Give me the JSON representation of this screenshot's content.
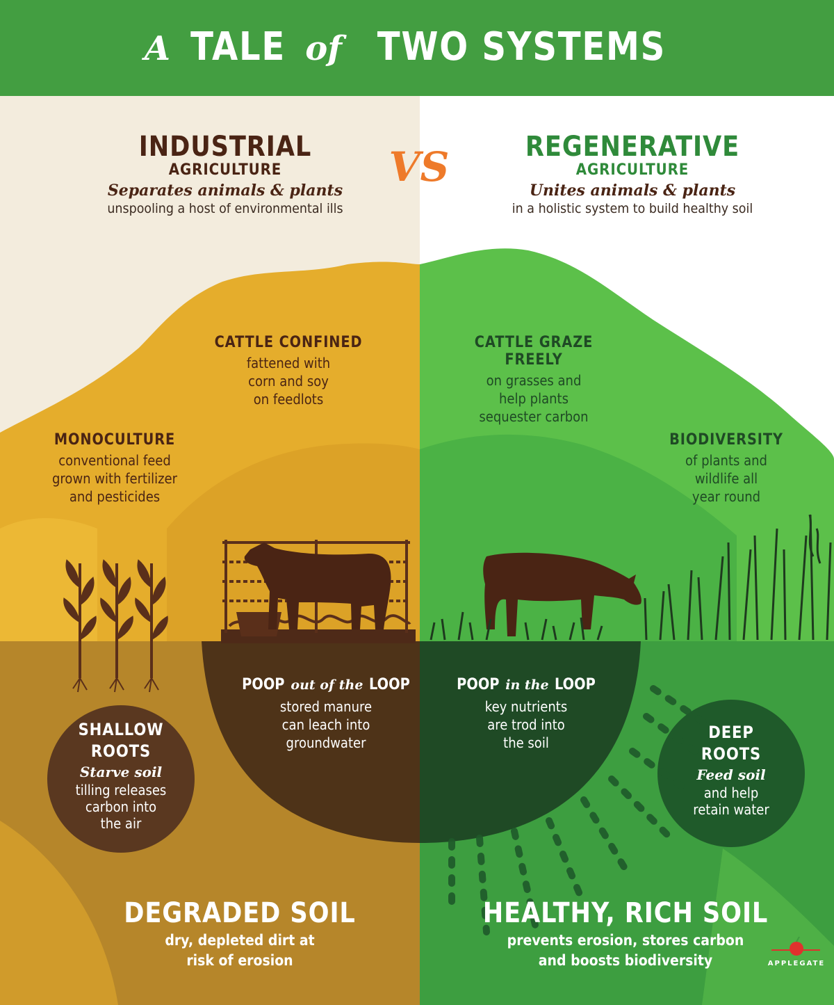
{
  "header": {
    "title_part1": "A",
    "title_part2": "TALE",
    "title_part3": "of",
    "title_part4": "TWO SYSTEMS"
  },
  "vs_label": "VS",
  "industrial": {
    "title": "INDUSTRIAL",
    "subtitle": "AGRICULTURE",
    "tagline": "Separates animals & plants",
    "description": "unspooling a host of environmental ills"
  },
  "regenerative": {
    "title": "REGENERATIVE",
    "subtitle": "AGRICULTURE",
    "tagline": "Unites animals & plants",
    "description": "in a holistic system to build healthy soil"
  },
  "labels": {
    "cattle_confined": {
      "heading": "CATTLE CONFINED",
      "lines": [
        "fattened with",
        "corn and soy",
        "on feedlots"
      ]
    },
    "cattle_graze": {
      "heading": "CATTLE GRAZE FREELY",
      "lines": [
        "on grasses and",
        "help plants",
        "sequester carbon"
      ]
    },
    "monoculture": {
      "heading": "MONOCULTURE",
      "lines": [
        "conventional feed",
        "grown with fertilizer",
        "and pesticides"
      ]
    },
    "biodiversity": {
      "heading": "BIODIVERSITY",
      "lines": [
        "of plants and",
        "wildlife all",
        "year round"
      ]
    },
    "poop_out": {
      "heading_a": "POOP",
      "heading_b": "out of the",
      "heading_c": "LOOP",
      "lines": [
        "stored manure",
        "can leach into",
        "groundwater"
      ]
    },
    "poop_in": {
      "heading_a": "POOP",
      "heading_b": "in the",
      "heading_c": "LOOP",
      "lines": [
        "key nutrients",
        "are trod into",
        "the soil"
      ]
    },
    "shallow_roots": {
      "heading": [
        "SHALLOW",
        "ROOTS"
      ],
      "tagline": "Starve soil",
      "lines": [
        "tilling releases",
        "carbon into",
        "the air"
      ]
    },
    "deep_roots": {
      "heading": [
        "DEEP",
        "ROOTS"
      ],
      "tagline": "Feed soil",
      "lines": [
        "and help",
        "retain water"
      ]
    },
    "degraded_soil": {
      "heading": "DEGRADED SOIL",
      "lines": [
        "dry, depleted dirt at",
        "risk of erosion"
      ]
    },
    "healthy_soil": {
      "heading": "HEALTHY, RICH SOIL",
      "lines": [
        "prevents erosion, stores carbon",
        "and boosts biodiversity"
      ]
    }
  },
  "logo": {
    "name": "APPLEGATE"
  },
  "colors": {
    "header_green": "#3f9a3e",
    "industrial_bg": "#f3ecdd",
    "regenerative_bg": "#ffffff",
    "ochre": "#e5ad2c",
    "ochre_dark": "#c48f22",
    "green_light": "#5cc04a",
    "green_mid": "#3aa040",
    "soil_brown": "#7a5420",
    "soil_green": "#2f6a32",
    "dark_brown": "#4a2c1a",
    "vs_orange": "#ee7a2a",
    "heading_brown": "#4a2414",
    "heading_green": "#2f8a3a"
  }
}
